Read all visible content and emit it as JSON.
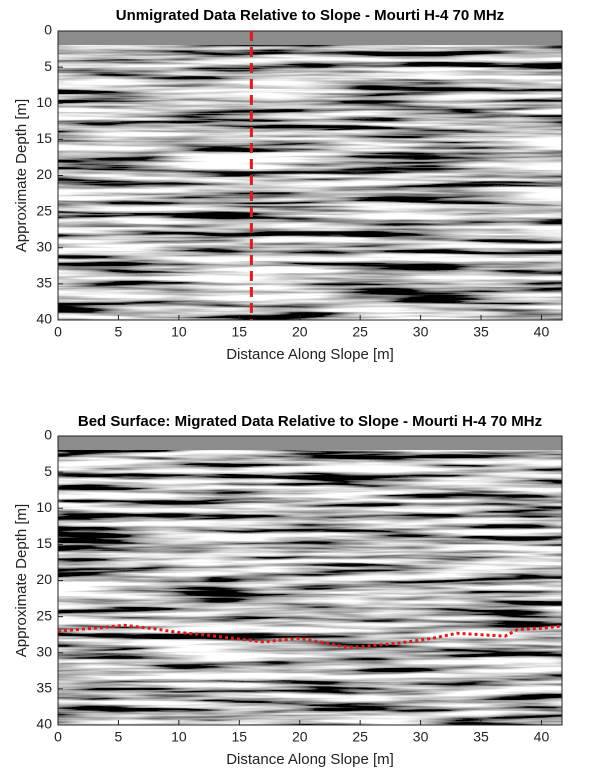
{
  "chart_data": [
    {
      "type": "radargram",
      "title": "Unmigrated Data Relative to Slope - Mourti H-4 70 MHz",
      "x_label": "Distance Along Slope [m]",
      "y_label": "Approximate Depth [m]",
      "xlim": [
        0,
        41.7
      ],
      "ylim": [
        0,
        40
      ],
      "xticks": [
        0,
        5,
        10,
        15,
        20,
        25,
        30,
        35,
        40
      ],
      "yticks": [
        0,
        5,
        10,
        15,
        20,
        25,
        30,
        35,
        40
      ],
      "vline": {
        "x": 16,
        "color": "#e01b1b"
      }
    },
    {
      "type": "radargram",
      "title": "Bed Surface: Migrated Data Relative to Slope - Mourti H-4 70 MHz",
      "x_label": "Distance Along Slope [m]",
      "y_label": "Approximate Depth [m]",
      "xlim": [
        0,
        41.7
      ],
      "ylim": [
        0,
        40
      ],
      "xticks": [
        0,
        5,
        10,
        15,
        20,
        25,
        30,
        35,
        40
      ],
      "yticks": [
        0,
        5,
        10,
        15,
        20,
        25,
        30,
        35,
        40
      ],
      "line": {
        "color": "#e01b1b",
        "x": [
          0,
          3,
          5.5,
          8,
          10,
          12,
          15,
          17,
          20,
          22,
          24,
          26,
          28,
          31,
          33,
          35,
          37,
          38,
          40,
          41.7
        ],
        "values": [
          27,
          26.6,
          26.2,
          26.7,
          27.2,
          27.5,
          28.1,
          28.5,
          28,
          28.6,
          29.3,
          29,
          28.7,
          28,
          27.3,
          27.5,
          27.7,
          26.8,
          26.6,
          26.3
        ]
      }
    }
  ]
}
